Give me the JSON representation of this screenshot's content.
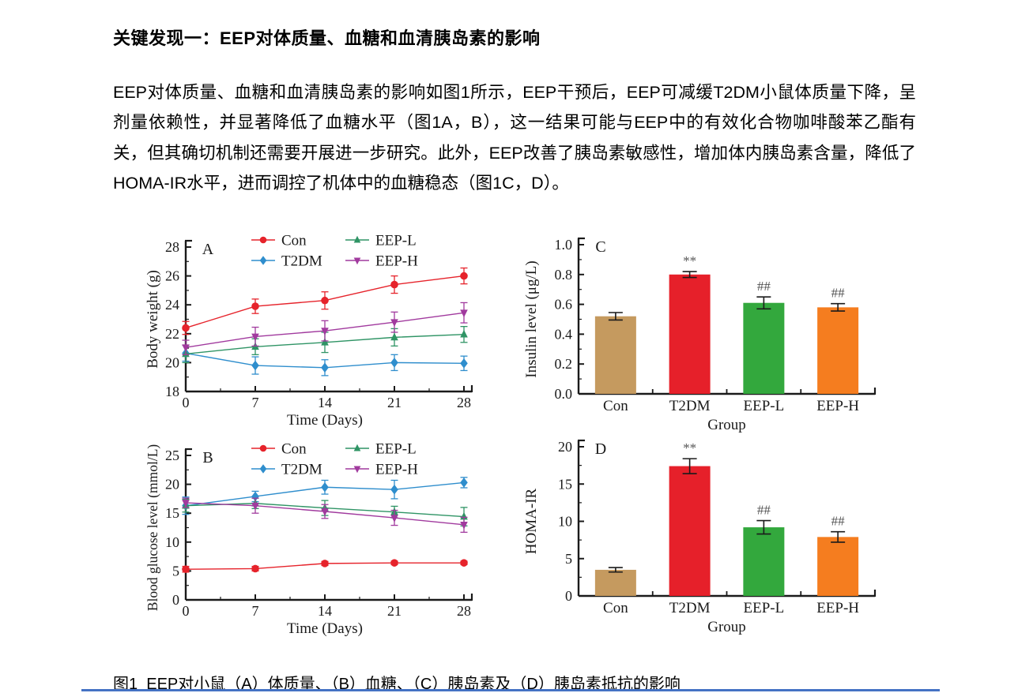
{
  "page": {
    "heading": "关键发现一：EEP对体质量、血糖和血清胰岛素的影响",
    "paragraph": "EEP对体质量、血糖和血清胰岛素的影响如图1所示，EEP干预后，EEP可减缓T2DM小鼠体质量下降，呈剂量依赖性，并显著降低了血糖水平（图1A，B），这一结果可能与EEP中的有效化合物咖啡酸苯乙酯有关，但其确切机制还需要开展进一步研究。此外，EEP改善了胰岛素敏感性，增加体内胰岛素含量，降低了HOMA-IR水平，进而调控了机体中的血糖稳态（图1C，D）。",
    "figure_caption": "图1  EEP对小鼠（A）体质量、（B）血糖、（C）胰岛素及（D）胰岛素抵抗的影响",
    "accent_line_color": "#4472c4"
  },
  "chart_data": [
    {
      "type": "line",
      "svg": "chartA",
      "panel_label": "A",
      "xlabel": "Time (Days)",
      "ylabel": "Body weight (g)",
      "x": [
        0,
        7,
        14,
        21,
        28
      ],
      "xlim": [
        0,
        28
      ],
      "ylim": [
        18,
        28
      ],
      "yticks": [
        18,
        20,
        22,
        24,
        26,
        28
      ],
      "ytick_labels": [
        "18",
        "20",
        "22",
        "24",
        "26",
        "28"
      ],
      "legend_position": "top-two-columns",
      "grid": false,
      "series": [
        {
          "name": "Con",
          "color": "#e6232b",
          "marker": "circle",
          "values": [
            22.4,
            23.9,
            24.3,
            25.4,
            26.0
          ],
          "errors": [
            0.45,
            0.5,
            0.6,
            0.6,
            0.55
          ]
        },
        {
          "name": "T2DM",
          "color": "#2f8ecd",
          "marker": "diamond",
          "values": [
            20.65,
            19.8,
            19.65,
            20.0,
            19.95
          ],
          "errors": [
            0.55,
            0.6,
            0.55,
            0.55,
            0.5
          ]
        },
        {
          "name": "EEP-L",
          "color": "#2f9465",
          "marker": "triangle-up",
          "values": [
            20.6,
            21.1,
            21.4,
            21.75,
            21.95
          ],
          "errors": [
            0.6,
            0.55,
            0.7,
            0.6,
            0.55
          ]
        },
        {
          "name": "EEP-H",
          "color": "#a13a9e",
          "marker": "triangle-down",
          "values": [
            21.05,
            21.8,
            22.2,
            22.8,
            23.45
          ],
          "errors": [
            0.5,
            0.65,
            0.7,
            0.7,
            0.7
          ]
        }
      ]
    },
    {
      "type": "line",
      "svg": "chartB",
      "panel_label": "B",
      "xlabel": "Time (Days)",
      "ylabel": "Blood glucose level (mmol/L)",
      "x": [
        0,
        7,
        14,
        21,
        28
      ],
      "xlim": [
        0,
        28
      ],
      "ylim": [
        0,
        25
      ],
      "yticks": [
        0,
        5,
        10,
        15,
        20,
        25
      ],
      "ytick_labels": [
        "0",
        "5",
        "10",
        "15",
        "20",
        "25"
      ],
      "legend_position": "top-two-columns",
      "grid": false,
      "series": [
        {
          "name": "Con",
          "color": "#e6232b",
          "marker": "circle",
          "values": [
            5.3,
            5.4,
            6.3,
            6.4,
            6.4
          ],
          "errors": [
            0.5,
            0.4,
            0.35,
            0.3,
            0.3
          ]
        },
        {
          "name": "T2DM",
          "color": "#2f8ecd",
          "marker": "diamond",
          "values": [
            16.3,
            17.9,
            19.5,
            19.1,
            20.3
          ],
          "errors": [
            1.5,
            0.9,
            1.2,
            1.6,
            0.9
          ]
        },
        {
          "name": "EEP-L",
          "color": "#2f9465",
          "marker": "triangle-up",
          "values": [
            16.3,
            16.7,
            15.9,
            15.2,
            14.4
          ],
          "errors": [
            1.1,
            0.9,
            1.3,
            1.0,
            1.6
          ]
        },
        {
          "name": "EEP-H",
          "color": "#a13a9e",
          "marker": "triangle-down",
          "values": [
            16.8,
            16.3,
            15.3,
            14.2,
            13.0
          ],
          "errors": [
            0.8,
            1.3,
            1.2,
            1.3,
            1.3
          ]
        }
      ]
    },
    {
      "type": "bar",
      "svg": "chartC",
      "panel_label": "C",
      "xlabel": "Group",
      "ylabel": "Insulin level (μg/L)",
      "categories": [
        "Con",
        "T2DM",
        "EEP-L",
        "EEP-H"
      ],
      "values": [
        0.52,
        0.8,
        0.61,
        0.58
      ],
      "errors": [
        0.025,
        0.02,
        0.04,
        0.025
      ],
      "annotations": [
        "",
        "**",
        "##",
        "##"
      ],
      "colors": [
        "#c59a5f",
        "#e6202a",
        "#33a83d",
        "#f57d1f"
      ],
      "ylim": [
        0,
        1
      ],
      "yticks": [
        0,
        0.2,
        0.4,
        0.6,
        0.8,
        1.0
      ],
      "ytick_labels": [
        "0.0",
        "0.2",
        "0.4",
        "0.6",
        "0.8",
        "1.0"
      ],
      "grid": false
    },
    {
      "type": "bar",
      "svg": "chartD",
      "panel_label": "D",
      "xlabel": "Group",
      "ylabel": "HOMA-IR",
      "categories": [
        "Con",
        "T2DM",
        "EEP-L",
        "EEP-H"
      ],
      "values": [
        3.5,
        17.4,
        9.2,
        7.9
      ],
      "errors": [
        0.3,
        1.0,
        0.9,
        0.7
      ],
      "annotations": [
        "",
        "**",
        "##",
        "##"
      ],
      "colors": [
        "#c59a5f",
        "#e6202a",
        "#33a83d",
        "#f57d1f"
      ],
      "ylim": [
        0,
        20
      ],
      "yticks": [
        0,
        5,
        10,
        15,
        20
      ],
      "ytick_labels": [
        "0",
        "5",
        "10",
        "15",
        "20"
      ],
      "grid": false
    }
  ]
}
